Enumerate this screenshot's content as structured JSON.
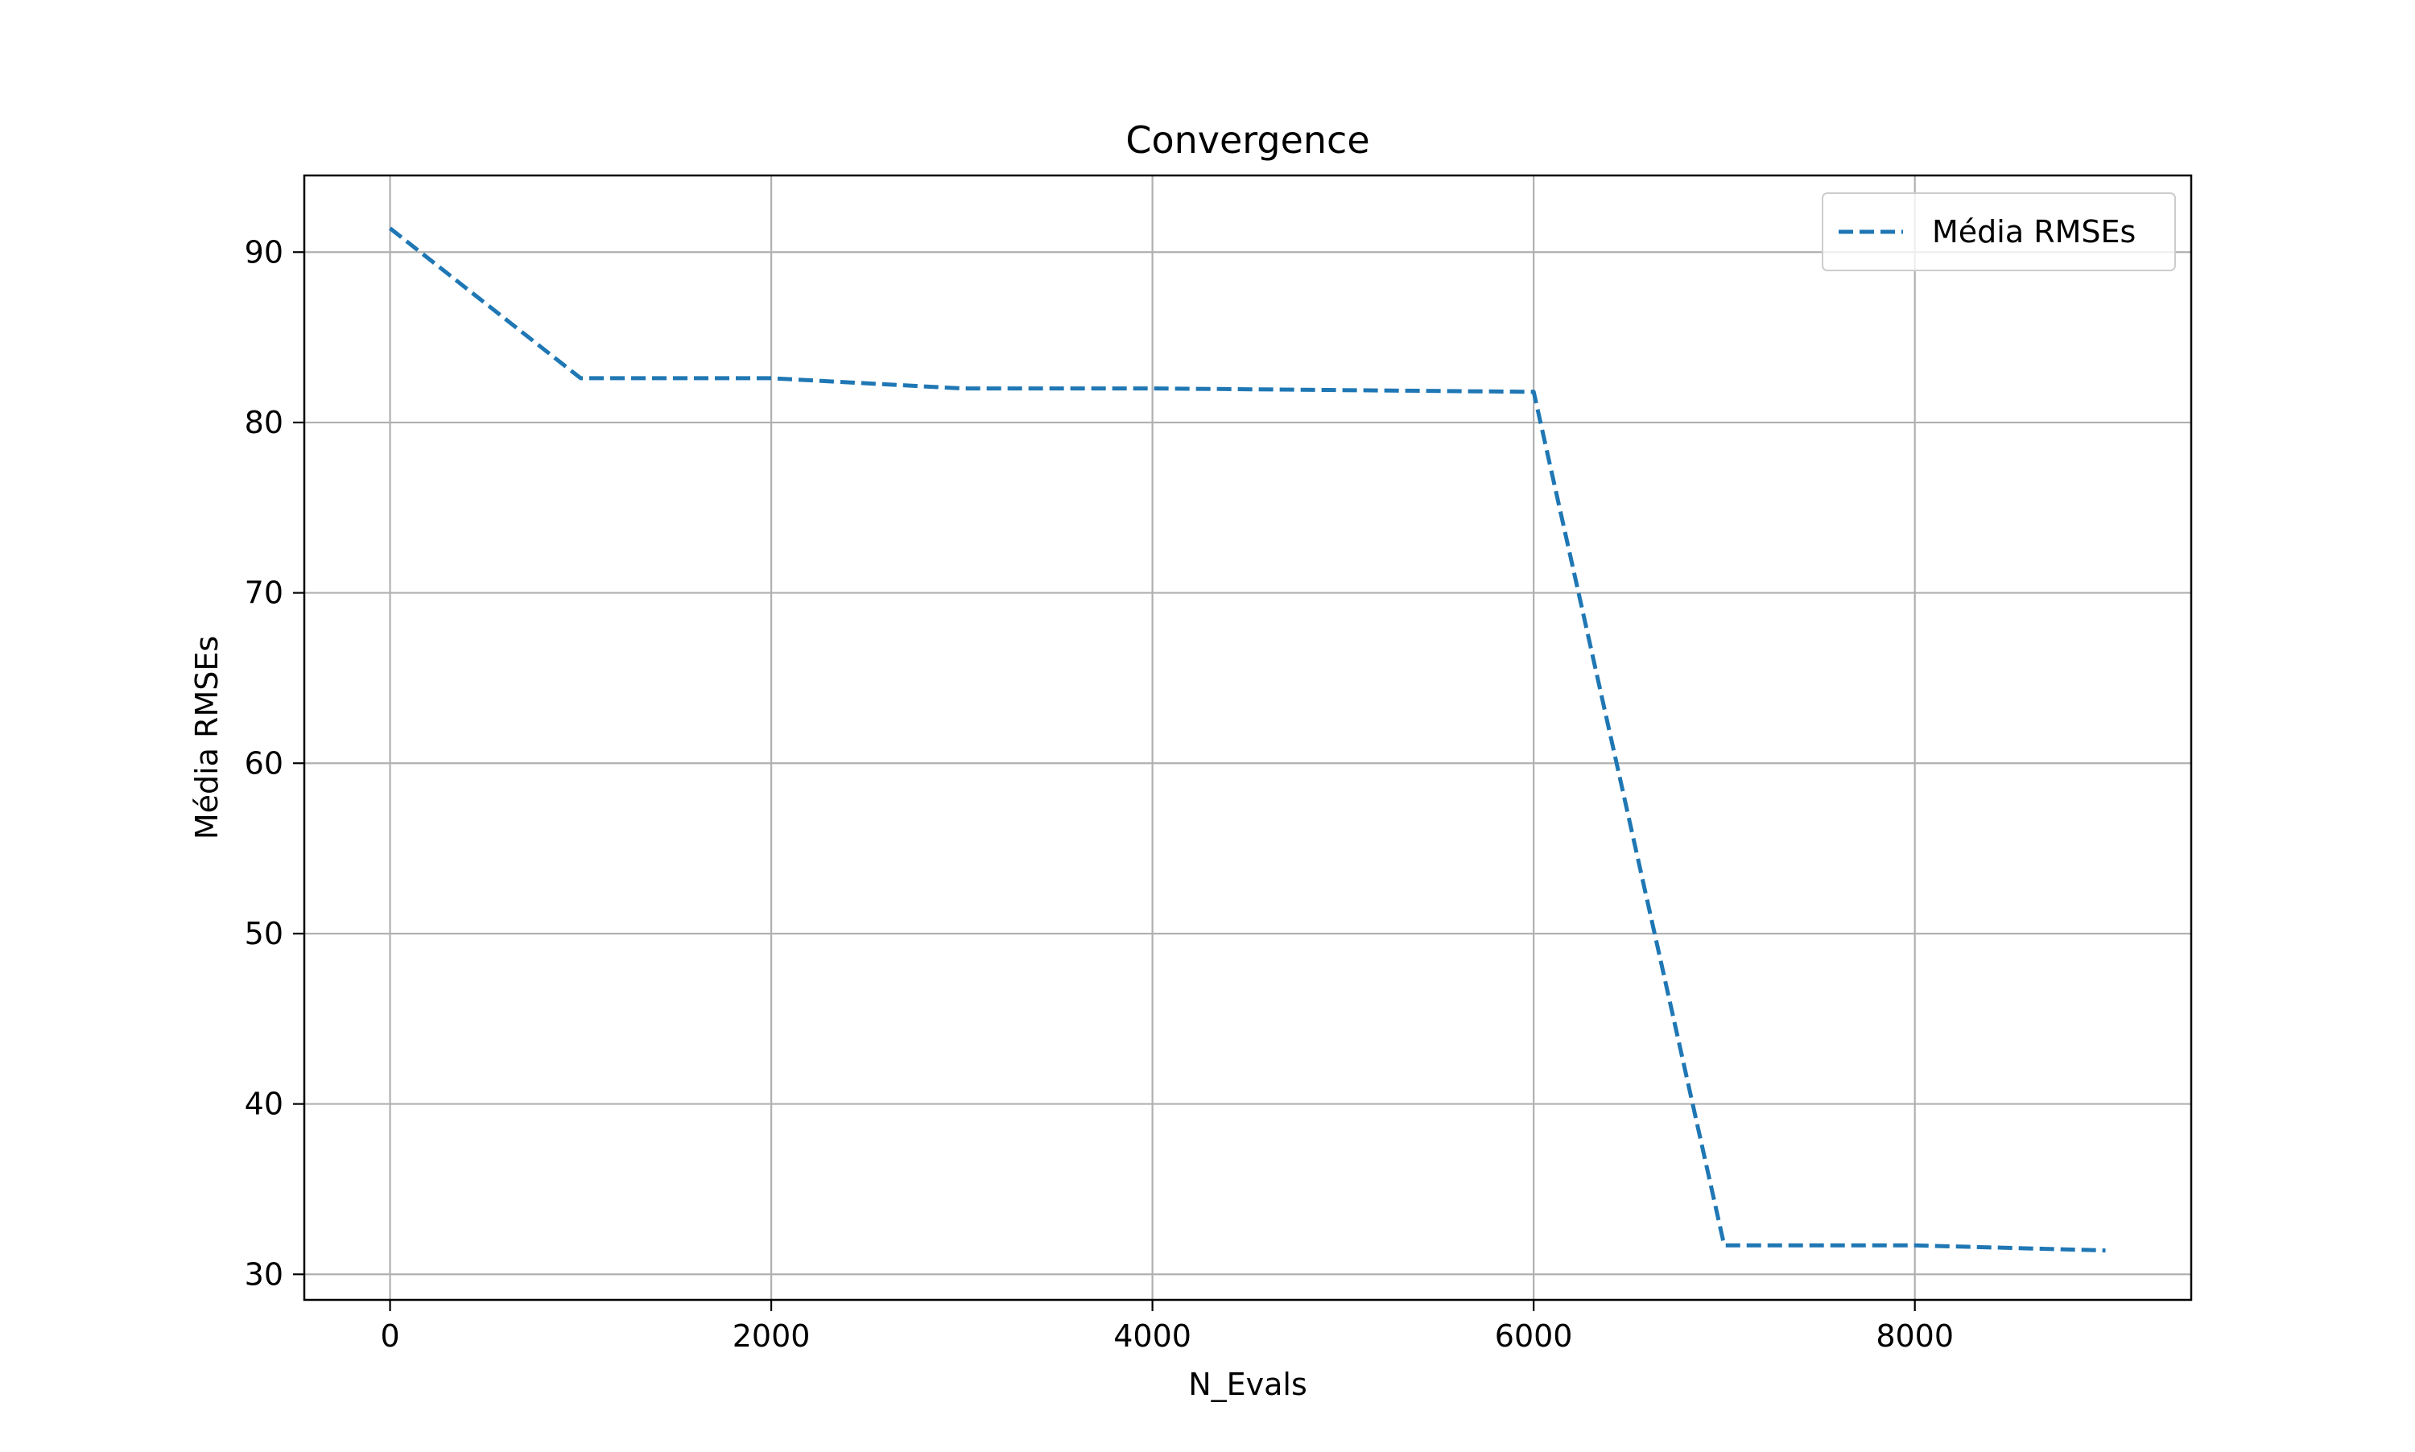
{
  "chart_data": {
    "type": "line",
    "title": "Convergence",
    "xlabel": "N_Evals",
    "ylabel": "Média RMSEs",
    "xlim": [
      -450,
      9450
    ],
    "ylim": [
      28.5,
      94.5
    ],
    "xticks": [
      0,
      2000,
      4000,
      6000,
      8000
    ],
    "yticks": [
      30,
      40,
      50,
      60,
      70,
      80,
      90
    ],
    "grid": true,
    "legend_position": "top-right",
    "series": [
      {
        "name": "Média RMSEs",
        "line_style": "dashed",
        "color": "#1f77b4",
        "x": [
          0,
          1000,
          2000,
          3000,
          4000,
          5000,
          6000,
          7000,
          8000,
          9000
        ],
        "y": [
          91.4,
          82.6,
          82.6,
          82.0,
          82.0,
          81.9,
          81.8,
          31.7,
          31.7,
          31.4
        ]
      }
    ]
  }
}
